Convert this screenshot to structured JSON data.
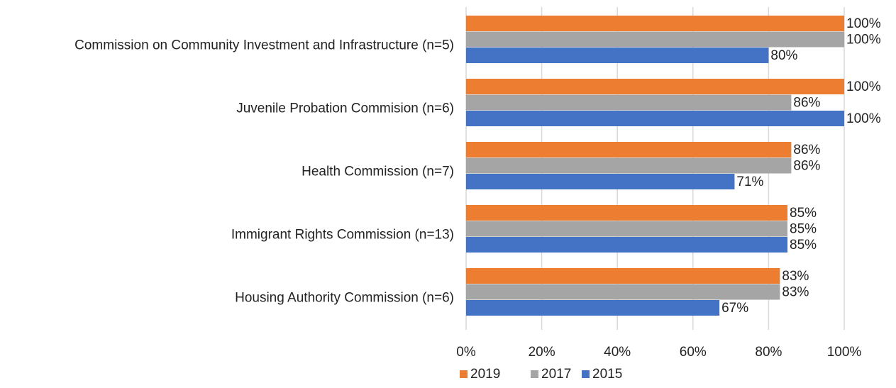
{
  "chart_data": {
    "type": "bar",
    "orientation": "horizontal",
    "categories": [
      "Commission on Community Investment and Infrastructure (n=5)",
      "Juvenile Probation Commision (n=6)",
      "Health Commission (n=7)",
      "Immigrant Rights Commission (n=13)",
      "Housing Authority Commission (n=6)"
    ],
    "series": [
      {
        "name": "2019",
        "color": "#ed7d31",
        "values": [
          100,
          100,
          86,
          85,
          83
        ],
        "value_labels": [
          "100%",
          "100%",
          "86%",
          "85%",
          "83%"
        ]
      },
      {
        "name": "2017",
        "color": "#a5a5a5",
        "values": [
          100,
          86,
          86,
          85,
          83
        ],
        "value_labels": [
          "100%",
          "86%",
          "86%",
          "85%",
          "83%"
        ]
      },
      {
        "name": "2015",
        "color": "#4472c4",
        "values": [
          80,
          100,
          71,
          85,
          67
        ],
        "value_labels": [
          "80%",
          "100%",
          "71%",
          "85%",
          "67%"
        ]
      }
    ],
    "xlim": [
      0,
      100
    ],
    "xticks": [
      {
        "value": 0,
        "label": "0%"
      },
      {
        "value": 20,
        "label": "20%"
      },
      {
        "value": 40,
        "label": "40%"
      },
      {
        "value": 60,
        "label": "60%"
      },
      {
        "value": 80,
        "label": "80%"
      },
      {
        "value": 100,
        "label": "100%"
      }
    ],
    "grid": true,
    "legend": "bottom"
  }
}
